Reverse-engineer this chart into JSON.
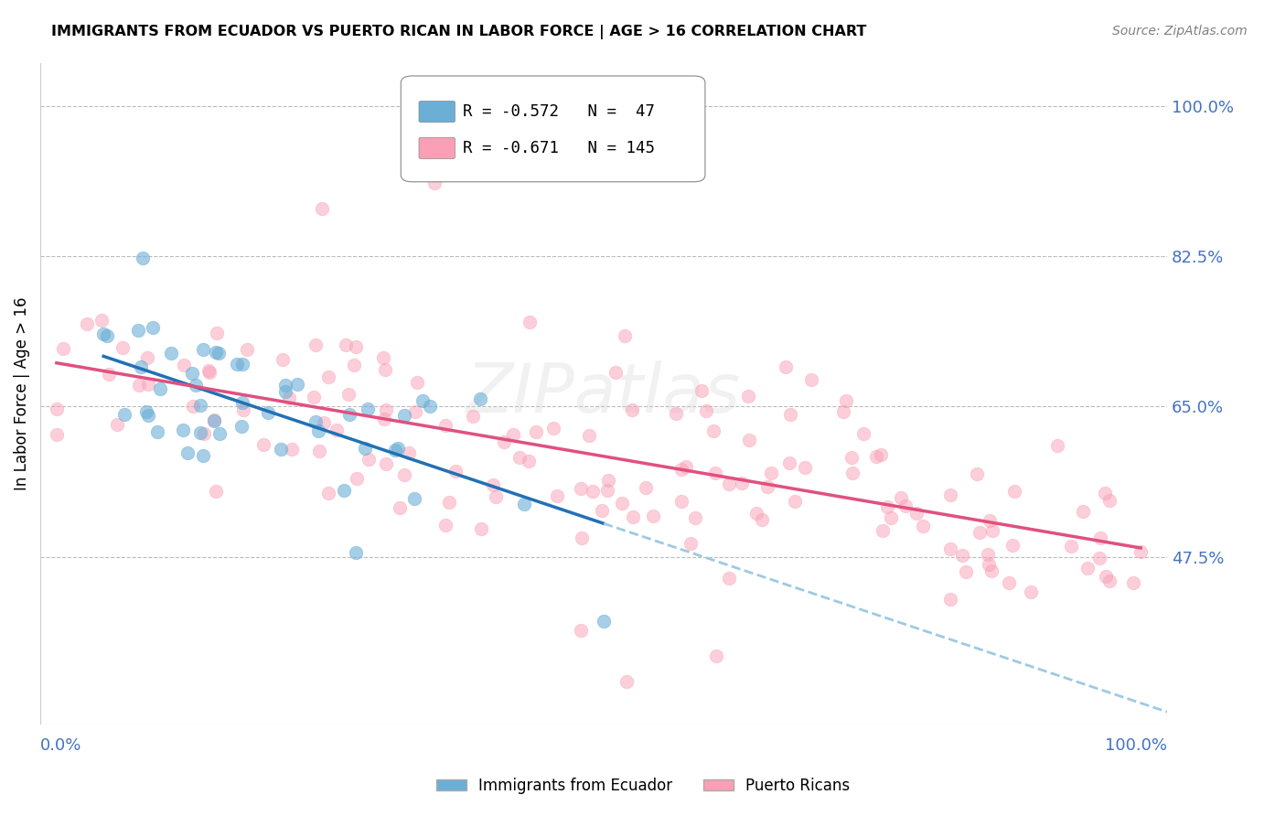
{
  "title": "IMMIGRANTS FROM ECUADOR VS PUERTO RICAN IN LABOR FORCE | AGE > 16 CORRELATION CHART",
  "source": "Source: ZipAtlas.com",
  "ylabel": "In Labor Force | Age > 16",
  "ytick_values": [
    1.0,
    0.825,
    0.65,
    0.475
  ],
  "ytick_labels": [
    "100.0%",
    "82.5%",
    "65.0%",
    "47.5%"
  ],
  "xrange": [
    0.0,
    1.0
  ],
  "yrange": [
    0.28,
    1.05
  ],
  "color_blue": "#6BAED6",
  "color_pink": "#FA9FB5",
  "color_line_blue": "#2171B5",
  "color_line_pink": "#E05080",
  "color_dashed_blue": "#9ECAE1",
  "color_axis_labels": "#4472C4",
  "watermark": "ZIPatlas",
  "legend_r1": "R = -0.572",
  "legend_n1": "N =  47",
  "legend_r2": "R = -0.671",
  "legend_n2": "N = 145",
  "legend_label1": "Immigrants from Ecuador",
  "legend_label2": "Puerto Ricans"
}
